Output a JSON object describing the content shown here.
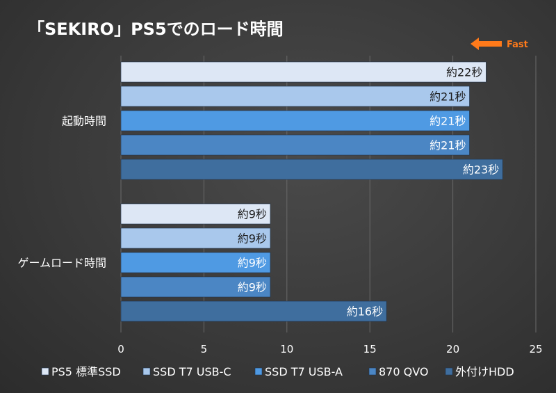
{
  "chart_data": {
    "type": "bar",
    "orientation": "horizontal",
    "title": "「SEKIRO」PS5でのロード時間",
    "categories": [
      "起動時間",
      "ゲームロード時間"
    ],
    "series": [
      {
        "name": "PS5 標準SSD",
        "values": [
          22,
          9
        ],
        "labels": [
          "約22秒",
          "約9秒"
        ],
        "color": "#dde7f5"
      },
      {
        "name": "SSD T7 USB-C",
        "values": [
          21,
          9
        ],
        "labels": [
          "約21秒",
          "約9秒"
        ],
        "color": "#a9c8ec"
      },
      {
        "name": "SSD T7 USB-A",
        "values": [
          21,
          9
        ],
        "labels": [
          "約21秒",
          "約9秒"
        ],
        "color": "#4f9ae3"
      },
      {
        "name": "870 QVO",
        "values": [
          21,
          9
        ],
        "labels": [
          "約21秒",
          "約9秒"
        ],
        "color": "#4b86c4"
      },
      {
        "name": "外付けHDD",
        "values": [
          23,
          16
        ],
        "labels": [
          "約23秒",
          "約16秒"
        ],
        "color": "#3f6e9e"
      }
    ],
    "xlim": [
      0,
      25
    ],
    "xticks": [
      0,
      5,
      10,
      15,
      20,
      25
    ],
    "grid": true,
    "legend": "bottom",
    "annotation": "Fast",
    "annotation_color": "#ff7a1a"
  }
}
